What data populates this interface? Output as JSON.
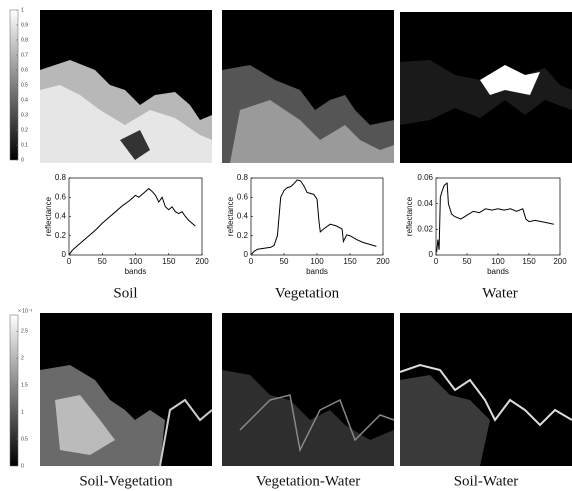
{
  "chart_data": [
    {
      "type": "line",
      "title": "Soil",
      "xlabel": "bands",
      "ylabel": "reflectance",
      "color": "#000000",
      "x": [
        1,
        5,
        10,
        20,
        30,
        40,
        50,
        60,
        70,
        80,
        90,
        100,
        105,
        110,
        115,
        120,
        125,
        130,
        135,
        140,
        145,
        150,
        155,
        160,
        165,
        170,
        175,
        180,
        185,
        190
      ],
      "values": [
        0.01,
        0.05,
        0.08,
        0.14,
        0.2,
        0.26,
        0.33,
        0.39,
        0.45,
        0.51,
        0.56,
        0.62,
        0.6,
        0.63,
        0.66,
        0.69,
        0.66,
        0.62,
        0.55,
        0.6,
        0.5,
        0.47,
        0.5,
        0.45,
        0.43,
        0.45,
        0.4,
        0.36,
        0.33,
        0.3
      ],
      "xlim": [
        0,
        200
      ],
      "xticks": [
        0,
        50,
        100,
        150,
        200
      ],
      "ylim": [
        0,
        0.8
      ],
      "yticks": [
        0,
        0.2,
        0.4,
        0.6,
        0.8
      ]
    },
    {
      "type": "line",
      "title": "Vegetation",
      "xlabel": "bands",
      "ylabel": "reflectance",
      "color": "#000000",
      "x": [
        1,
        5,
        10,
        20,
        30,
        35,
        40,
        45,
        50,
        55,
        60,
        65,
        70,
        75,
        80,
        85,
        90,
        95,
        100,
        103,
        105,
        110,
        120,
        130,
        138,
        140,
        145,
        150,
        160,
        170,
        180,
        190
      ],
      "values": [
        0.01,
        0.04,
        0.06,
        0.07,
        0.08,
        0.1,
        0.2,
        0.6,
        0.67,
        0.7,
        0.71,
        0.74,
        0.78,
        0.77,
        0.72,
        0.65,
        0.64,
        0.63,
        0.58,
        0.35,
        0.24,
        0.27,
        0.32,
        0.3,
        0.27,
        0.14,
        0.21,
        0.2,
        0.16,
        0.13,
        0.11,
        0.09
      ],
      "xlim": [
        0,
        200
      ],
      "xticks": [
        0,
        50,
        100,
        150,
        200
      ],
      "ylim": [
        0,
        0.8
      ],
      "yticks": [
        0,
        0.2,
        0.4,
        0.6,
        0.8
      ]
    },
    {
      "type": "line",
      "title": "Water",
      "xlabel": "bands",
      "ylabel": "reflectance",
      "color": "#000000",
      "x": [
        1,
        3,
        5,
        7,
        10,
        13,
        15,
        18,
        20,
        25,
        30,
        40,
        50,
        60,
        70,
        80,
        90,
        100,
        110,
        120,
        130,
        140,
        145,
        150,
        160,
        170,
        180,
        190
      ],
      "values": [
        0.002,
        0.012,
        0.004,
        0.045,
        0.05,
        0.054,
        0.055,
        0.056,
        0.04,
        0.032,
        0.03,
        0.028,
        0.031,
        0.034,
        0.033,
        0.036,
        0.035,
        0.036,
        0.035,
        0.036,
        0.034,
        0.036,
        0.028,
        0.026,
        0.027,
        0.026,
        0.025,
        0.024
      ],
      "xlim": [
        0,
        200
      ],
      "xticks": [
        0,
        50,
        100,
        150,
        200
      ],
      "ylim": [
        0,
        0.06
      ],
      "yticks": [
        0,
        0.02,
        0.04,
        0.06
      ]
    }
  ],
  "colorbars": [
    {
      "ylim": [
        0,
        1
      ],
      "yticks": [
        0,
        0.1,
        0.2,
        0.3,
        0.4,
        0.5,
        0.6,
        0.7,
        0.8,
        0.9,
        1
      ]
    },
    {
      "multiplier": "× 10⁻³",
      "ylim": [
        0,
        2.8
      ],
      "yticks": [
        0,
        0.5,
        1,
        1.5,
        2,
        2.5
      ]
    }
  ],
  "bottom_captions": [
    "Soil-Vegetation",
    "Vegetation-Water",
    "Soil-Water"
  ]
}
